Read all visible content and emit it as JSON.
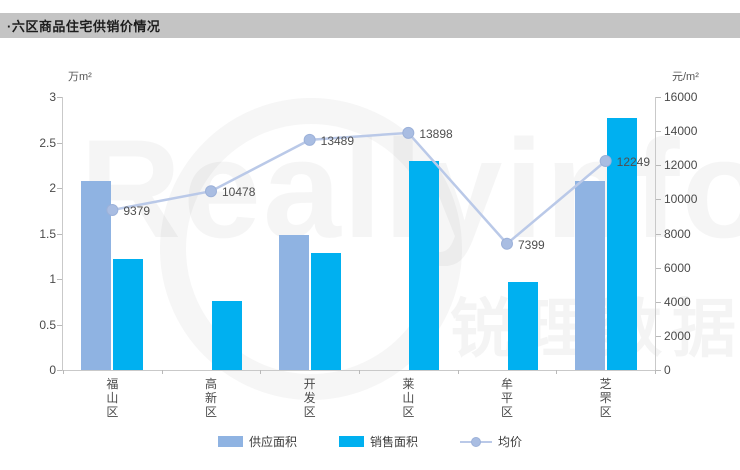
{
  "title": "·六区商品住宅供销价情况",
  "watermark": {
    "latin": "Reallyinfo",
    "cjk": "锐理数据"
  },
  "chart_data": {
    "type": "bar",
    "subtype": "grouped bars with overlaid line (dual axis)",
    "categories": [
      "福山区",
      "高新区",
      "开发区",
      "莱山区",
      "牟平区",
      "芝罘区"
    ],
    "left_axis": {
      "unit": "万m²",
      "min": 0,
      "max": 3,
      "ticks": [
        "3",
        "2.5",
        "2",
        "1.5",
        "1",
        "0.5",
        "0"
      ]
    },
    "right_axis": {
      "unit": "元/m²",
      "min": 0,
      "max": 16000,
      "ticks": [
        "16000",
        "14000",
        "12000",
        "10000",
        "8000",
        "6000",
        "4000",
        "2000",
        "0"
      ]
    },
    "series": [
      {
        "name": "供应面积",
        "type": "bar",
        "axis": "left",
        "color": "#8fb3e2",
        "values": [
          2.08,
          null,
          1.48,
          null,
          null,
          2.08
        ]
      },
      {
        "name": "销售面积",
        "type": "bar",
        "axis": "left",
        "color": "#00b0f0",
        "values": [
          1.22,
          0.76,
          1.29,
          2.3,
          0.97,
          2.77
        ]
      },
      {
        "name": "均价",
        "type": "line",
        "axis": "right",
        "color": "#bac9e8",
        "marker_color": "#a9bde2",
        "marker_border": "#9cb1d9",
        "values": [
          9379,
          10478,
          13489,
          13898,
          7399,
          12249
        ],
        "labels": [
          "9379",
          "10478",
          "13489",
          "13898",
          "7399",
          "12249"
        ]
      }
    ],
    "grid": false,
    "legend_position": "bottom"
  }
}
